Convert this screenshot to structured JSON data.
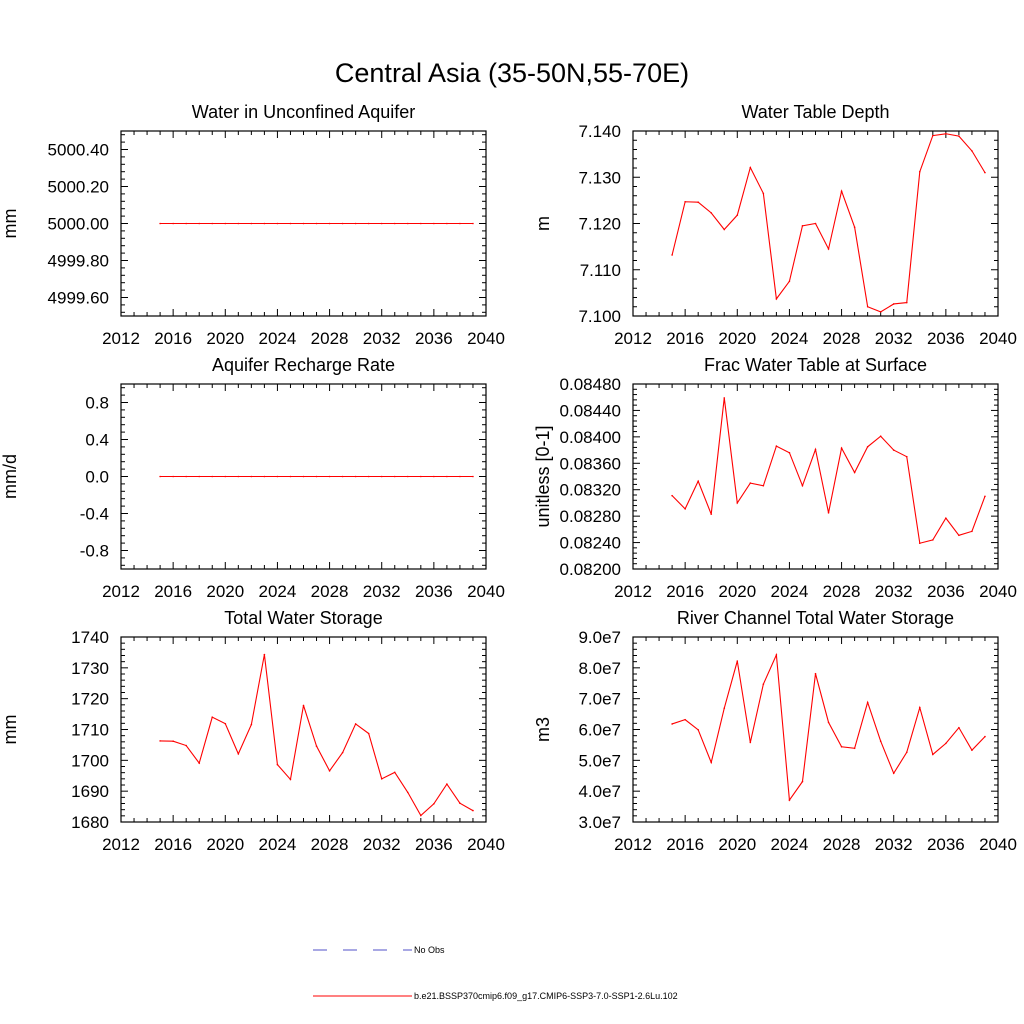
{
  "title": "Central Asia (35-50N,55-70E)",
  "legend": {
    "obs_label": "No Obs",
    "model_label": "b.e21.BSSP370cmip6.f09_g17.CMIP6-SSP3-7.0-SSP1-2.6Lu.102",
    "obs_color": "#5050c8",
    "model_color": "#ff0000"
  },
  "chart_data": [
    {
      "type": "line",
      "title": "Water in Unconfined Aquifer",
      "ylabel": "mm",
      "xlim": [
        2012,
        2040
      ],
      "xticks": [
        "2012",
        "2016",
        "2020",
        "2024",
        "2028",
        "2032",
        "2036",
        "2040"
      ],
      "ylim": [
        4999.5,
        5000.5
      ],
      "yticks": [
        4999.6,
        4999.8,
        5000.0,
        5000.2,
        5000.4
      ],
      "yticklabels": [
        "4999.60",
        "4999.80",
        "5000.00",
        "5000.20",
        "5000.40"
      ],
      "x": [
        2015,
        2016,
        2017,
        2018,
        2019,
        2020,
        2021,
        2022,
        2023,
        2024,
        2025,
        2026,
        2027,
        2028,
        2029,
        2030,
        2031,
        2032,
        2033,
        2034,
        2035,
        2036,
        2037,
        2038,
        2039
      ],
      "series": [
        {
          "values": [
            5000,
            5000,
            5000,
            5000,
            5000,
            5000,
            5000,
            5000,
            5000,
            5000,
            5000,
            5000,
            5000,
            5000,
            5000,
            5000,
            5000,
            5000,
            5000,
            5000,
            5000,
            5000,
            5000,
            5000,
            5000
          ]
        }
      ]
    },
    {
      "type": "line",
      "title": "Water Table Depth",
      "ylabel": "m",
      "xlim": [
        2012,
        2040
      ],
      "xticks": [
        "2012",
        "2016",
        "2020",
        "2024",
        "2028",
        "2032",
        "2036",
        "2040"
      ],
      "ylim": [
        7.1,
        7.14
      ],
      "yticks": [
        7.1,
        7.11,
        7.12,
        7.13,
        7.14
      ],
      "yticklabels": [
        "7.100",
        "7.110",
        "7.120",
        "7.130",
        "7.140"
      ],
      "x": [
        2015,
        2016,
        2017,
        2018,
        2019,
        2020,
        2021,
        2022,
        2023,
        2024,
        2025,
        2026,
        2027,
        2028,
        2029,
        2030,
        2031,
        2032,
        2033,
        2034,
        2035,
        2036,
        2037,
        2038,
        2039
      ],
      "series": [
        {
          "values": [
            7.1132,
            7.1247,
            7.1246,
            7.1223,
            7.1187,
            7.1218,
            7.1321,
            7.1265,
            7.1037,
            7.1075,
            7.1195,
            7.12,
            7.1145,
            7.127,
            7.1192,
            7.102,
            7.1009,
            7.1026,
            7.1029,
            7.1312,
            7.139,
            7.1394,
            7.1389,
            7.1357,
            7.131
          ]
        }
      ]
    },
    {
      "type": "line",
      "title": "Aquifer Recharge Rate",
      "ylabel": "mm/d",
      "xlim": [
        2012,
        2040
      ],
      "xticks": [
        "2012",
        "2016",
        "2020",
        "2024",
        "2028",
        "2032",
        "2036",
        "2040"
      ],
      "ylim": [
        -1.0,
        1.0
      ],
      "yticks": [
        -0.8,
        -0.4,
        0.0,
        0.4,
        0.8
      ],
      "yticklabels": [
        "-0.8",
        "-0.4",
        "0.0",
        "0.4",
        "0.8"
      ],
      "x": [
        2015,
        2016,
        2017,
        2018,
        2019,
        2020,
        2021,
        2022,
        2023,
        2024,
        2025,
        2026,
        2027,
        2028,
        2029,
        2030,
        2031,
        2032,
        2033,
        2034,
        2035,
        2036,
        2037,
        2038,
        2039
      ],
      "series": [
        {
          "values": [
            0,
            0,
            0,
            0,
            0,
            0,
            0,
            0,
            0,
            0,
            0,
            0,
            0,
            0,
            0,
            0,
            0,
            0,
            0,
            0,
            0,
            0,
            0,
            0,
            0
          ]
        }
      ]
    },
    {
      "type": "line",
      "title": "Frac Water Table at Surface",
      "ylabel": "unitless [0-1]",
      "xlim": [
        2012,
        2040
      ],
      "xticks": [
        "2012",
        "2016",
        "2020",
        "2024",
        "2028",
        "2032",
        "2036",
        "2040"
      ],
      "ylim": [
        0.082,
        0.0848
      ],
      "yticks": [
        0.082,
        0.0824,
        0.0828,
        0.0832,
        0.0836,
        0.084,
        0.0844,
        0.0848
      ],
      "yticklabels": [
        "0.08200",
        "0.08240",
        "0.08280",
        "0.08320",
        "0.08360",
        "0.08400",
        "0.08440",
        "0.08480"
      ],
      "x": [
        2015,
        2016,
        2017,
        2018,
        2019,
        2020,
        2021,
        2022,
        2023,
        2024,
        2025,
        2026,
        2027,
        2028,
        2029,
        2030,
        2031,
        2032,
        2033,
        2034,
        2035,
        2036,
        2037,
        2038,
        2039
      ],
      "series": [
        {
          "values": [
            0.08311,
            0.08291,
            0.08333,
            0.08283,
            0.08459,
            0.083,
            0.0833,
            0.08326,
            0.08386,
            0.08376,
            0.08326,
            0.08381,
            0.08285,
            0.08383,
            0.08346,
            0.08385,
            0.08401,
            0.0838,
            0.0837,
            0.08239,
            0.08244,
            0.08277,
            0.08251,
            0.08257,
            0.0831
          ]
        }
      ]
    },
    {
      "type": "line",
      "title": "Total Water Storage",
      "ylabel": "mm",
      "xlim": [
        2012,
        2040
      ],
      "xticks": [
        "2012",
        "2016",
        "2020",
        "2024",
        "2028",
        "2032",
        "2036",
        "2040"
      ],
      "ylim": [
        1680,
        1740
      ],
      "yticks": [
        1680,
        1690,
        1700,
        1710,
        1720,
        1730,
        1740
      ],
      "yticklabels": [
        "1680",
        "1690",
        "1700",
        "1710",
        "1720",
        "1730",
        "1740"
      ],
      "x": [
        2015,
        2016,
        2017,
        2018,
        2019,
        2020,
        2021,
        2022,
        2023,
        2024,
        2025,
        2026,
        2027,
        2028,
        2029,
        2030,
        2031,
        2032,
        2033,
        2034,
        2035,
        2036,
        2037,
        2038,
        2039
      ],
      "series": [
        {
          "values": [
            1706.3,
            1706.2,
            1704.8,
            1699.1,
            1714.0,
            1711.9,
            1702.1,
            1711.6,
            1734.3,
            1698.6,
            1693.8,
            1717.8,
            1704.6,
            1696.6,
            1702.5,
            1711.8,
            1708.7,
            1694.0,
            1696.1,
            1689.6,
            1682.1,
            1685.9,
            1692.3,
            1686.1,
            1683.7
          ]
        }
      ]
    },
    {
      "type": "line",
      "title": "River Channel Total Water Storage",
      "ylabel": "m3",
      "xlim": [
        2012,
        2040
      ],
      "xticks": [
        "2012",
        "2016",
        "2020",
        "2024",
        "2028",
        "2032",
        "2036",
        "2040"
      ],
      "ylim": [
        30000000,
        90000000
      ],
      "yticks": [
        30000000,
        40000000,
        50000000,
        60000000,
        70000000,
        80000000,
        90000000
      ],
      "yticklabels": [
        "3.0e7",
        "4.0e7",
        "5.0e7",
        "6.0e7",
        "7.0e7",
        "8.0e7",
        "9.0e7"
      ],
      "x": [
        2015,
        2016,
        2017,
        2018,
        2019,
        2020,
        2021,
        2022,
        2023,
        2024,
        2025,
        2026,
        2027,
        2028,
        2029,
        2030,
        2031,
        2032,
        2033,
        2034,
        2035,
        2036,
        2037,
        2038,
        2039
      ],
      "series": [
        {
          "values": [
            61800000,
            63200000,
            59900000,
            49300000,
            66900000,
            82200000,
            55800000,
            74700000,
            84200000,
            37100000,
            43100000,
            78100000,
            62300000,
            54400000,
            53900000,
            68800000,
            56200000,
            45800000,
            52600000,
            67100000,
            51900000,
            55500000,
            60600000,
            53300000,
            57700000
          ]
        }
      ]
    }
  ]
}
